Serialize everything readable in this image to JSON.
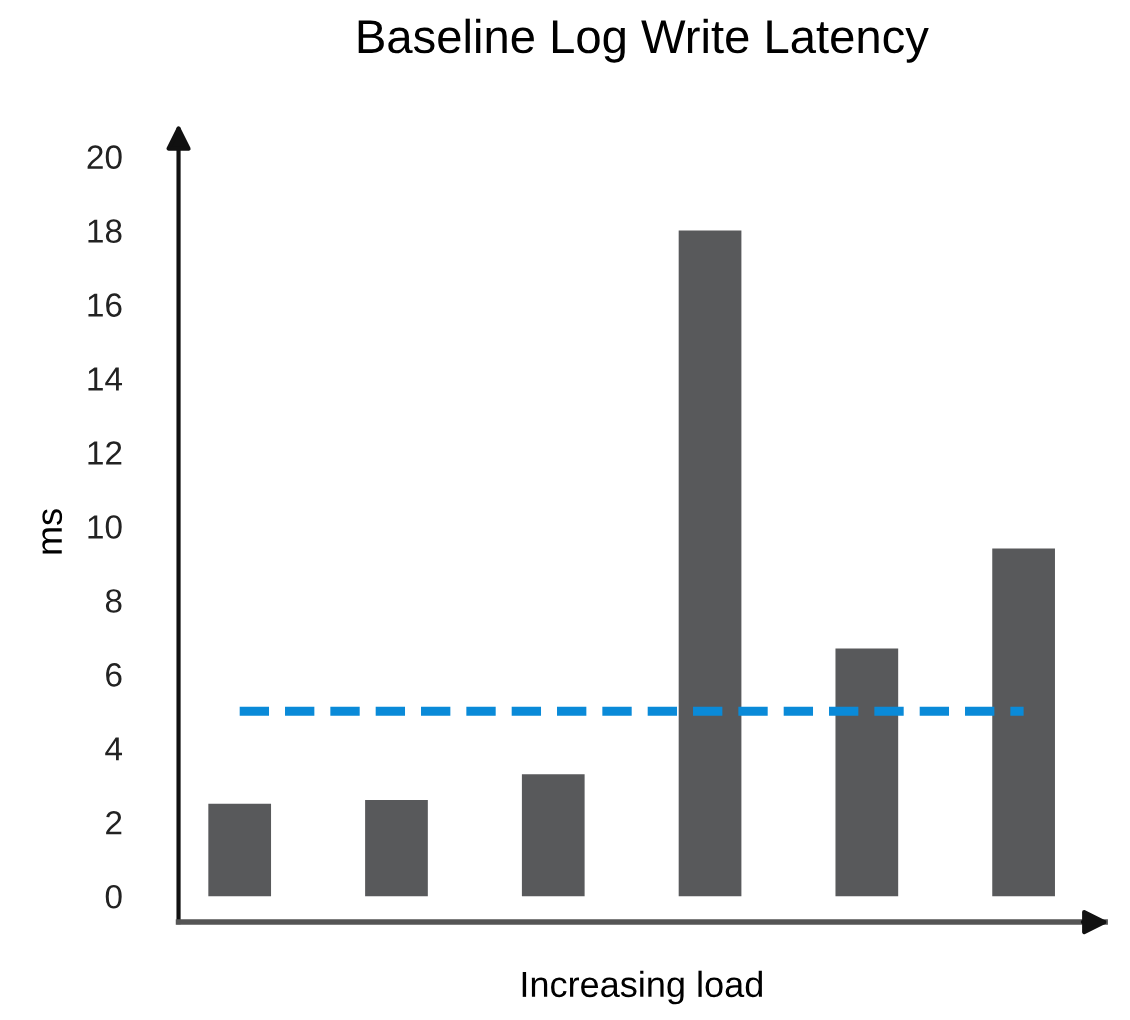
{
  "chart_data": {
    "type": "bar",
    "title": "Baseline Log Write Latency",
    "xlabel": "Increasing load",
    "ylabel": "ms",
    "categories": [
      null,
      null,
      null,
      null,
      null,
      null
    ],
    "values": [
      2.5,
      2.6,
      3.3,
      18.0,
      6.7,
      9.4
    ],
    "color": "#58595b",
    "ylim": [
      -0.7,
      20.4
    ],
    "yticks": [
      0,
      2,
      4,
      6,
      8,
      10,
      12,
      14,
      16,
      18,
      20
    ],
    "ref_lines": [
      {
        "axis": "y",
        "value": 5.0,
        "color": "#0a8ad8",
        "line_style": "dashed"
      }
    ],
    "grid": false,
    "legend": false
  }
}
